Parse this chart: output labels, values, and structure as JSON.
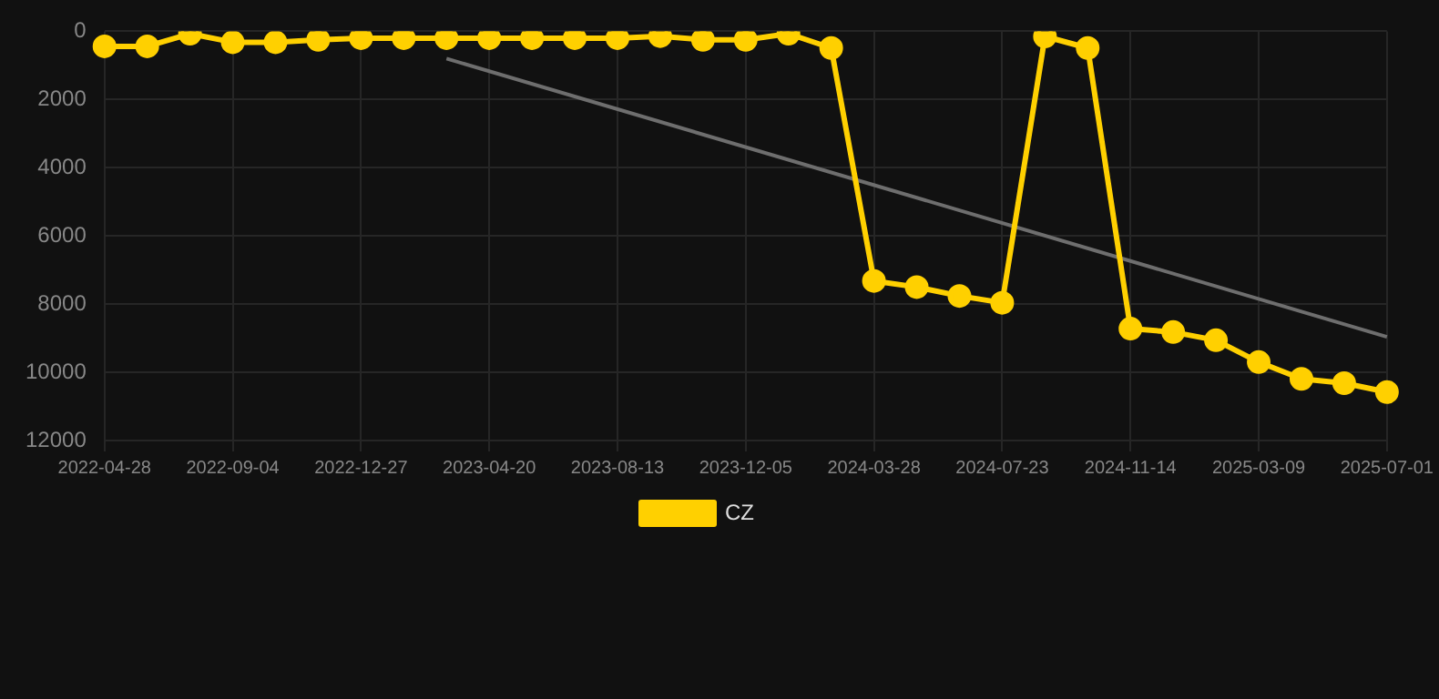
{
  "chart_data": {
    "type": "line",
    "categories": [
      "2022-04-28",
      null,
      null,
      "2022-09-04",
      null,
      null,
      "2022-12-27",
      null,
      null,
      "2023-04-20",
      null,
      null,
      "2023-08-13",
      null,
      null,
      "2023-12-05",
      null,
      null,
      "2024-03-28",
      null,
      null,
      "2024-07-23",
      null,
      null,
      "2024-11-14",
      null,
      null,
      "2025-03-09",
      null,
      null,
      "2025-07-01"
    ],
    "series": [
      {
        "name": "CZ",
        "color": "#ffd000",
        "marker": "circle",
        "values": [
          440,
          440,
          70,
          320,
          320,
          250,
          200,
          200,
          200,
          200,
          200,
          200,
          200,
          140,
          250,
          250,
          70,
          490,
          7320,
          7500,
          7760,
          7960,
          150,
          490,
          8720,
          8820,
          9060,
          9700,
          10190,
          10320,
          10580
        ]
      },
      {
        "color": "#6e6e6e",
        "marker": "none",
        "values": [
          null,
          null,
          null,
          null,
          null,
          null,
          null,
          null,
          800,
          null,
          null,
          null,
          null,
          null,
          null,
          null,
          null,
          null,
          null,
          null,
          null,
          null,
          null,
          null,
          null,
          null,
          null,
          null,
          null,
          null,
          8960
        ]
      }
    ],
    "ylim": [
      12000,
      0
    ],
    "yticks": [
      0,
      2000,
      4000,
      6000,
      8000,
      10000,
      12000
    ],
    "grid": true,
    "legend": "bottom"
  }
}
